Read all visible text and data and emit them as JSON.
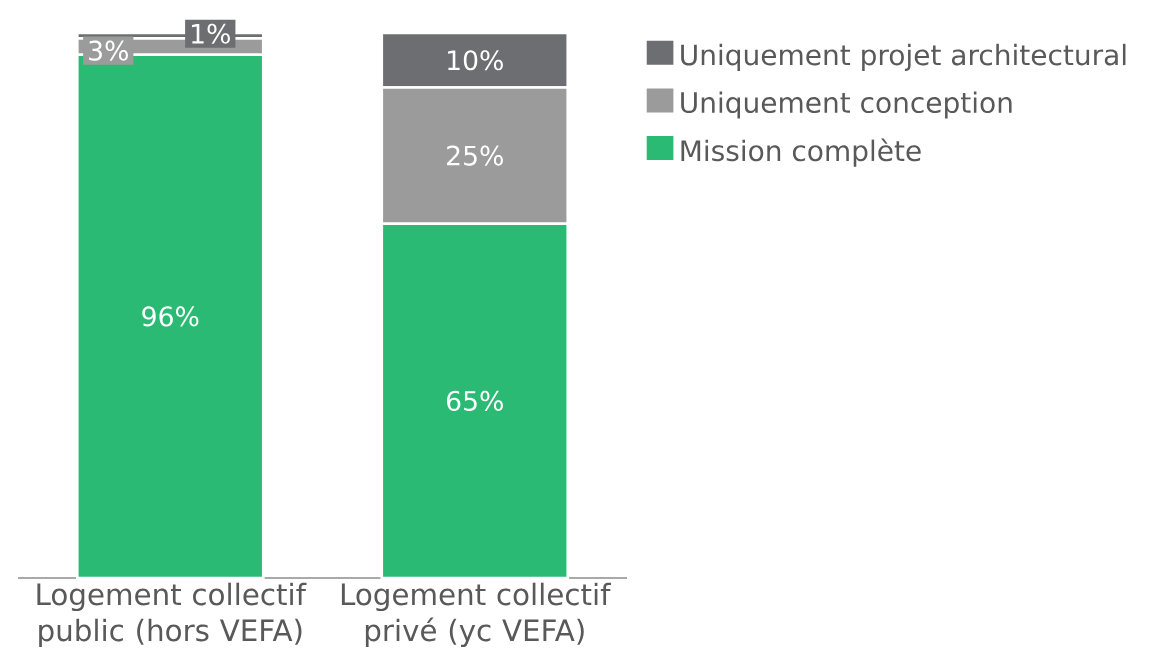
{
  "chart_data": {
    "type": "bar",
    "stacked": true,
    "categories": [
      "Logement collectif public (hors VEFA)",
      "Logement collectif privé (yc VEFA)"
    ],
    "ylim": [
      0,
      100
    ],
    "legend": "top right",
    "tick_labels": "x",
    "series": [
      {
        "name": "Mission complète",
        "color": "#2bba74",
        "values": [
          96,
          65
        ],
        "value_labels": [
          "96%",
          "65%"
        ]
      },
      {
        "name": "Uniquement conception",
        "color": "#9b9b9b",
        "values": [
          3,
          25
        ],
        "value_labels": [
          "3%",
          "25%"
        ]
      },
      {
        "name": "Uniquement projet architectural",
        "color": "#6d6e71",
        "values": [
          1,
          10
        ],
        "value_labels": [
          "1%",
          "10%"
        ]
      }
    ]
  }
}
